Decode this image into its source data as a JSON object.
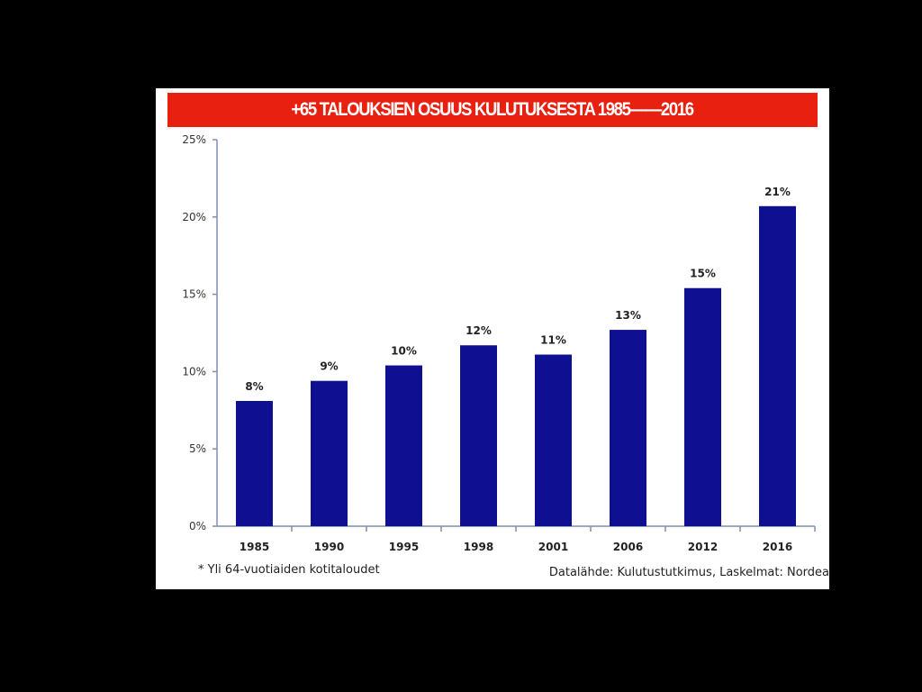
{
  "chart_data": {
    "type": "bar",
    "title": "+65 TALOUKSIEN OSUUS KULUTUKSESTA 1985——2016",
    "categories": [
      "1985",
      "1990",
      "1995",
      "1998",
      "2001",
      "2006",
      "2012",
      "2016"
    ],
    "values": [
      8.1,
      9.4,
      10.4,
      11.7,
      11.1,
      12.7,
      15.4,
      20.7
    ],
    "data_labels": [
      "8%",
      "9%",
      "10%",
      "12%",
      "11%",
      "13%",
      "15%",
      "21%"
    ],
    "ylim": [
      0,
      25
    ],
    "yticks": [
      0,
      5,
      10,
      15,
      20,
      25
    ],
    "ytick_labels": [
      "0%",
      "5%",
      "10%",
      "15%",
      "20%",
      "25%"
    ],
    "xlabel": "",
    "ylabel": "",
    "bar_color": "#0f0f92",
    "grid": false,
    "legend": "none"
  },
  "footnote": "* Yli 64-vuotiaiden kotitaloudet",
  "source": "Datalähde: Kulutustutkimus, Laskelmat: Nordea",
  "colors": {
    "title_bar": "#e8200f",
    "background": "#000000",
    "panel": "#ffffff"
  }
}
